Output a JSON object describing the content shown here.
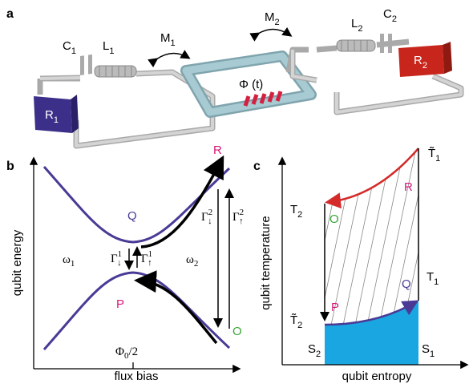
{
  "panel_a": {
    "label": "a",
    "components": [
      {
        "symbol": "C",
        "index": "1"
      },
      {
        "symbol": "L",
        "index": "1"
      },
      {
        "symbol": "M",
        "index": "1"
      },
      {
        "symbol": "M",
        "index": "2"
      },
      {
        "symbol": "L",
        "index": "2"
      },
      {
        "symbol": "C",
        "index": "2"
      },
      {
        "symbol": "R",
        "index": "1"
      },
      {
        "symbol": "R",
        "index": "2"
      }
    ],
    "flux": "Φ (t)"
  },
  "panel_b": {
    "label": "b",
    "y_axis": "qubit energy",
    "x_axis": "flux bias",
    "states": [
      "Q",
      "R",
      "P",
      "O"
    ],
    "frequencies": [
      {
        "symbol": "ω",
        "index": "1"
      },
      {
        "symbol": "ω",
        "index": "2"
      }
    ],
    "rates": [
      {
        "symbol": "Γ",
        "sup": "1",
        "sub": "↓"
      },
      {
        "symbol": "Γ",
        "sup": "1",
        "sub": "↑"
      },
      {
        "symbol": "Γ",
        "sup": "2",
        "sub": "↓"
      },
      {
        "symbol": "Γ",
        "sup": "2",
        "sub": "↑"
      }
    ],
    "tick": {
      "symbol": "Φ",
      "index": "0",
      "rest": "/2"
    }
  },
  "panel_c": {
    "label": "c",
    "y_axis": "qubit temperature",
    "x_axis": "qubit entropy",
    "states": [
      "R",
      "O",
      "Q",
      "P"
    ],
    "temperatures": [
      {
        "symbol": "T̃",
        "index": "1"
      },
      {
        "symbol": "T",
        "index": "2"
      },
      {
        "symbol": "T",
        "index": "1"
      },
      {
        "symbol": "T̃",
        "index": "2"
      }
    ],
    "entropies": [
      {
        "symbol": "S",
        "index": "2"
      },
      {
        "symbol": "S",
        "index": "1"
      }
    ]
  }
}
